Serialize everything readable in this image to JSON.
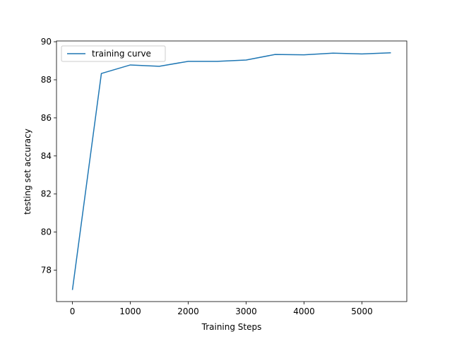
{
  "chart_data": {
    "type": "line",
    "x_label": "Training Steps",
    "y_label": "testing set accuracy",
    "x": [
      0,
      500,
      1000,
      1500,
      2000,
      2500,
      3000,
      3500,
      4000,
      4500,
      5000,
      5500
    ],
    "series": [
      {
        "name": "training curve",
        "color": "#1f77b4",
        "values": [
          76.96,
          88.33,
          88.78,
          88.71,
          88.97,
          88.97,
          89.04,
          89.33,
          89.31,
          89.4,
          89.36,
          89.42
        ]
      }
    ],
    "xlim": [
      -275,
      5775
    ],
    "xticks": [
      0,
      1000,
      2000,
      3000,
      4000,
      5000
    ],
    "ylim": [
      76.35,
      90.04
    ],
    "yticks": [
      78,
      80,
      82,
      84,
      86,
      88,
      90
    ],
    "legend": "upper left",
    "grid": false
  }
}
